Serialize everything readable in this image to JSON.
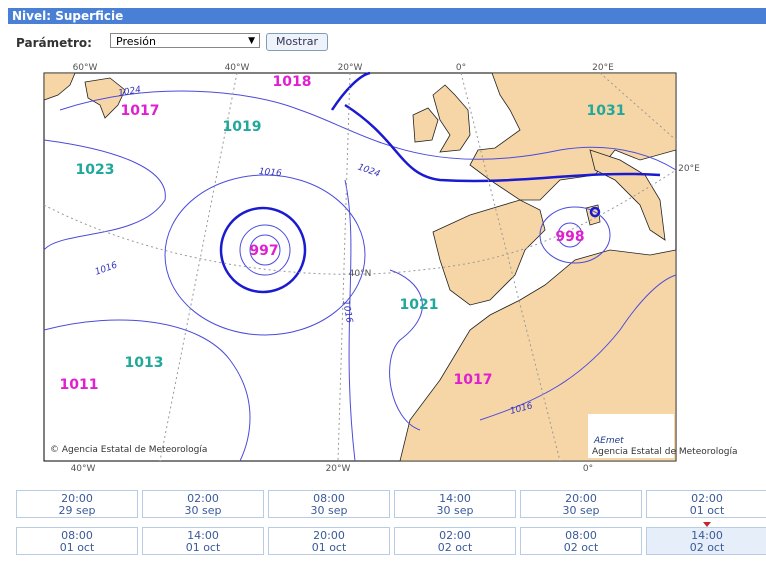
{
  "header": {
    "title": "Nivel: Superficie"
  },
  "form": {
    "label": "Parámetro:",
    "select": "Presión",
    "button": "Mostrar"
  },
  "map": {
    "top_labels": [
      "60°W",
      "40°W",
      "20°W",
      "0°",
      "20°E"
    ],
    "right_labels": [
      "20°E"
    ],
    "bottom_labels": [
      "40°W",
      "20°W",
      "0°"
    ],
    "grid_labels": [
      "40°N"
    ],
    "pressure_labels": [
      "1018",
      "1017",
      "1019",
      "1023",
      "1031",
      "997",
      "998",
      "1021",
      "1013",
      "1011",
      "1017"
    ],
    "isobar_labels": [
      "1024",
      "1016",
      "1024",
      "1016",
      "1016",
      "1016"
    ],
    "credit": "© Agencia Estatal de Meteorología",
    "logo": {
      "name": "AEmet",
      "caption": "Agencia Estatal de Meteorología"
    }
  },
  "times": [
    [
      {
        "time": "20:00",
        "date": "29 sep"
      },
      {
        "time": "02:00",
        "date": "30 sep"
      },
      {
        "time": "08:00",
        "date": "30 sep"
      },
      {
        "time": "14:00",
        "date": "30 sep"
      },
      {
        "time": "20:00",
        "date": "30 sep"
      },
      {
        "time": "02:00",
        "date": "01 oct"
      }
    ],
    [
      {
        "time": "08:00",
        "date": "01 oct"
      },
      {
        "time": "14:00",
        "date": "01 oct"
      },
      {
        "time": "20:00",
        "date": "01 oct"
      },
      {
        "time": "02:00",
        "date": "02 oct"
      },
      {
        "time": "08:00",
        "date": "02 oct"
      },
      {
        "time": "14:00",
        "date": "02 oct"
      }
    ]
  ]
}
